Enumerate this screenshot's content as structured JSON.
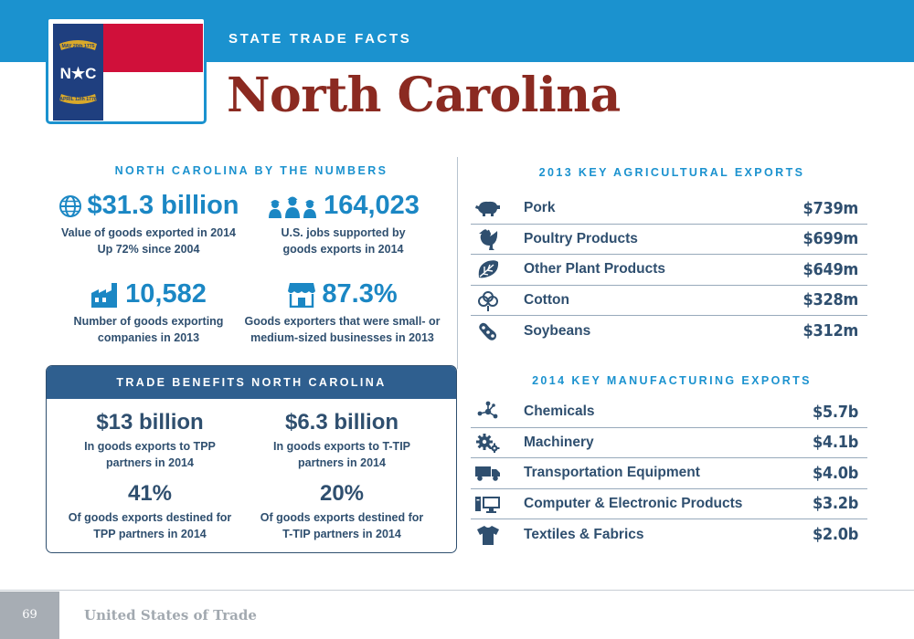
{
  "header": {
    "section_label": "STATE TRADE FACTS",
    "state_name": "North Carolina",
    "flag": {
      "top_ribbon": "MAY 20th 1775",
      "bottom_ribbon": "APRIL 12th 1776",
      "letters": "N★C",
      "colors": {
        "blue": "#1f3f7f",
        "red": "#d0103a",
        "white": "#ffffff",
        "gold": "#d9a92a"
      }
    }
  },
  "by_the_numbers": {
    "heading": "NORTH CAROLINA BY THE NUMBERS",
    "stats": [
      {
        "icon": "globe-icon",
        "value": "$31.3 billion",
        "caption_line1": "Value of goods exported in 2014",
        "caption_line2": "Up 72% since 2004"
      },
      {
        "icon": "workers-icon",
        "value": "164,023",
        "caption_line1": "U.S. jobs supported by",
        "caption_line2": "goods exports in 2014"
      },
      {
        "icon": "factory-icon",
        "value": "10,582",
        "caption_line1": "Number of goods exporting",
        "caption_line2": "companies in 2013"
      },
      {
        "icon": "storefront-icon",
        "value": "87.3%",
        "caption_line1": "Goods exporters that were small- or",
        "caption_line2": "medium-sized businesses in 2013"
      }
    ]
  },
  "trade_benefits": {
    "heading": "TRADE BENEFITS NORTH CAROLINA",
    "stats": [
      {
        "value": "$13 billion",
        "caption_line1": "In goods exports to TPP",
        "caption_line2": "partners in 2014"
      },
      {
        "value": "$6.3 billion",
        "caption_line1": "In goods exports to T-TIP",
        "caption_line2": "partners in 2014"
      },
      {
        "value": "41%",
        "caption_line1": "Of goods exports destined for",
        "caption_line2": "TPP partners in 2014"
      },
      {
        "value": "20%",
        "caption_line1": "Of goods exports destined for",
        "caption_line2": "T-TIP partners in 2014"
      }
    ]
  },
  "agricultural_exports": {
    "heading": "2013 KEY AGRICULTURAL EXPORTS",
    "items": [
      {
        "icon": "pig-icon",
        "name": "Pork",
        "value": "$739m"
      },
      {
        "icon": "chicken-icon",
        "name": "Poultry Products",
        "value": "$699m"
      },
      {
        "icon": "leaf-icon",
        "name": "Other Plant Products",
        "value": "$649m"
      },
      {
        "icon": "cotton-icon",
        "name": "Cotton",
        "value": "$328m"
      },
      {
        "icon": "soybean-icon",
        "name": "Soybeans",
        "value": "$312m"
      }
    ]
  },
  "manufacturing_exports": {
    "heading": "2014 KEY MANUFACTURING EXPORTS",
    "items": [
      {
        "icon": "molecule-icon",
        "name": "Chemicals",
        "value": "$5.7b"
      },
      {
        "icon": "gears-icon",
        "name": "Machinery",
        "value": "$4.1b"
      },
      {
        "icon": "truck-icon",
        "name": "Transportation Equipment",
        "value": "$4.0b"
      },
      {
        "icon": "computer-icon",
        "name": "Computer & Electronic Products",
        "value": "$3.2b"
      },
      {
        "icon": "shirt-icon",
        "name": "Textiles & Fabrics",
        "value": "$2.0b"
      }
    ]
  },
  "footer": {
    "page_number": "69",
    "publication_title": "United States of Trade"
  },
  "colors": {
    "accent_blue": "#1b92cf",
    "title_red": "#8b2a21",
    "navy_text": "#2f4f6f",
    "panel_header": "#2f5f8f"
  }
}
